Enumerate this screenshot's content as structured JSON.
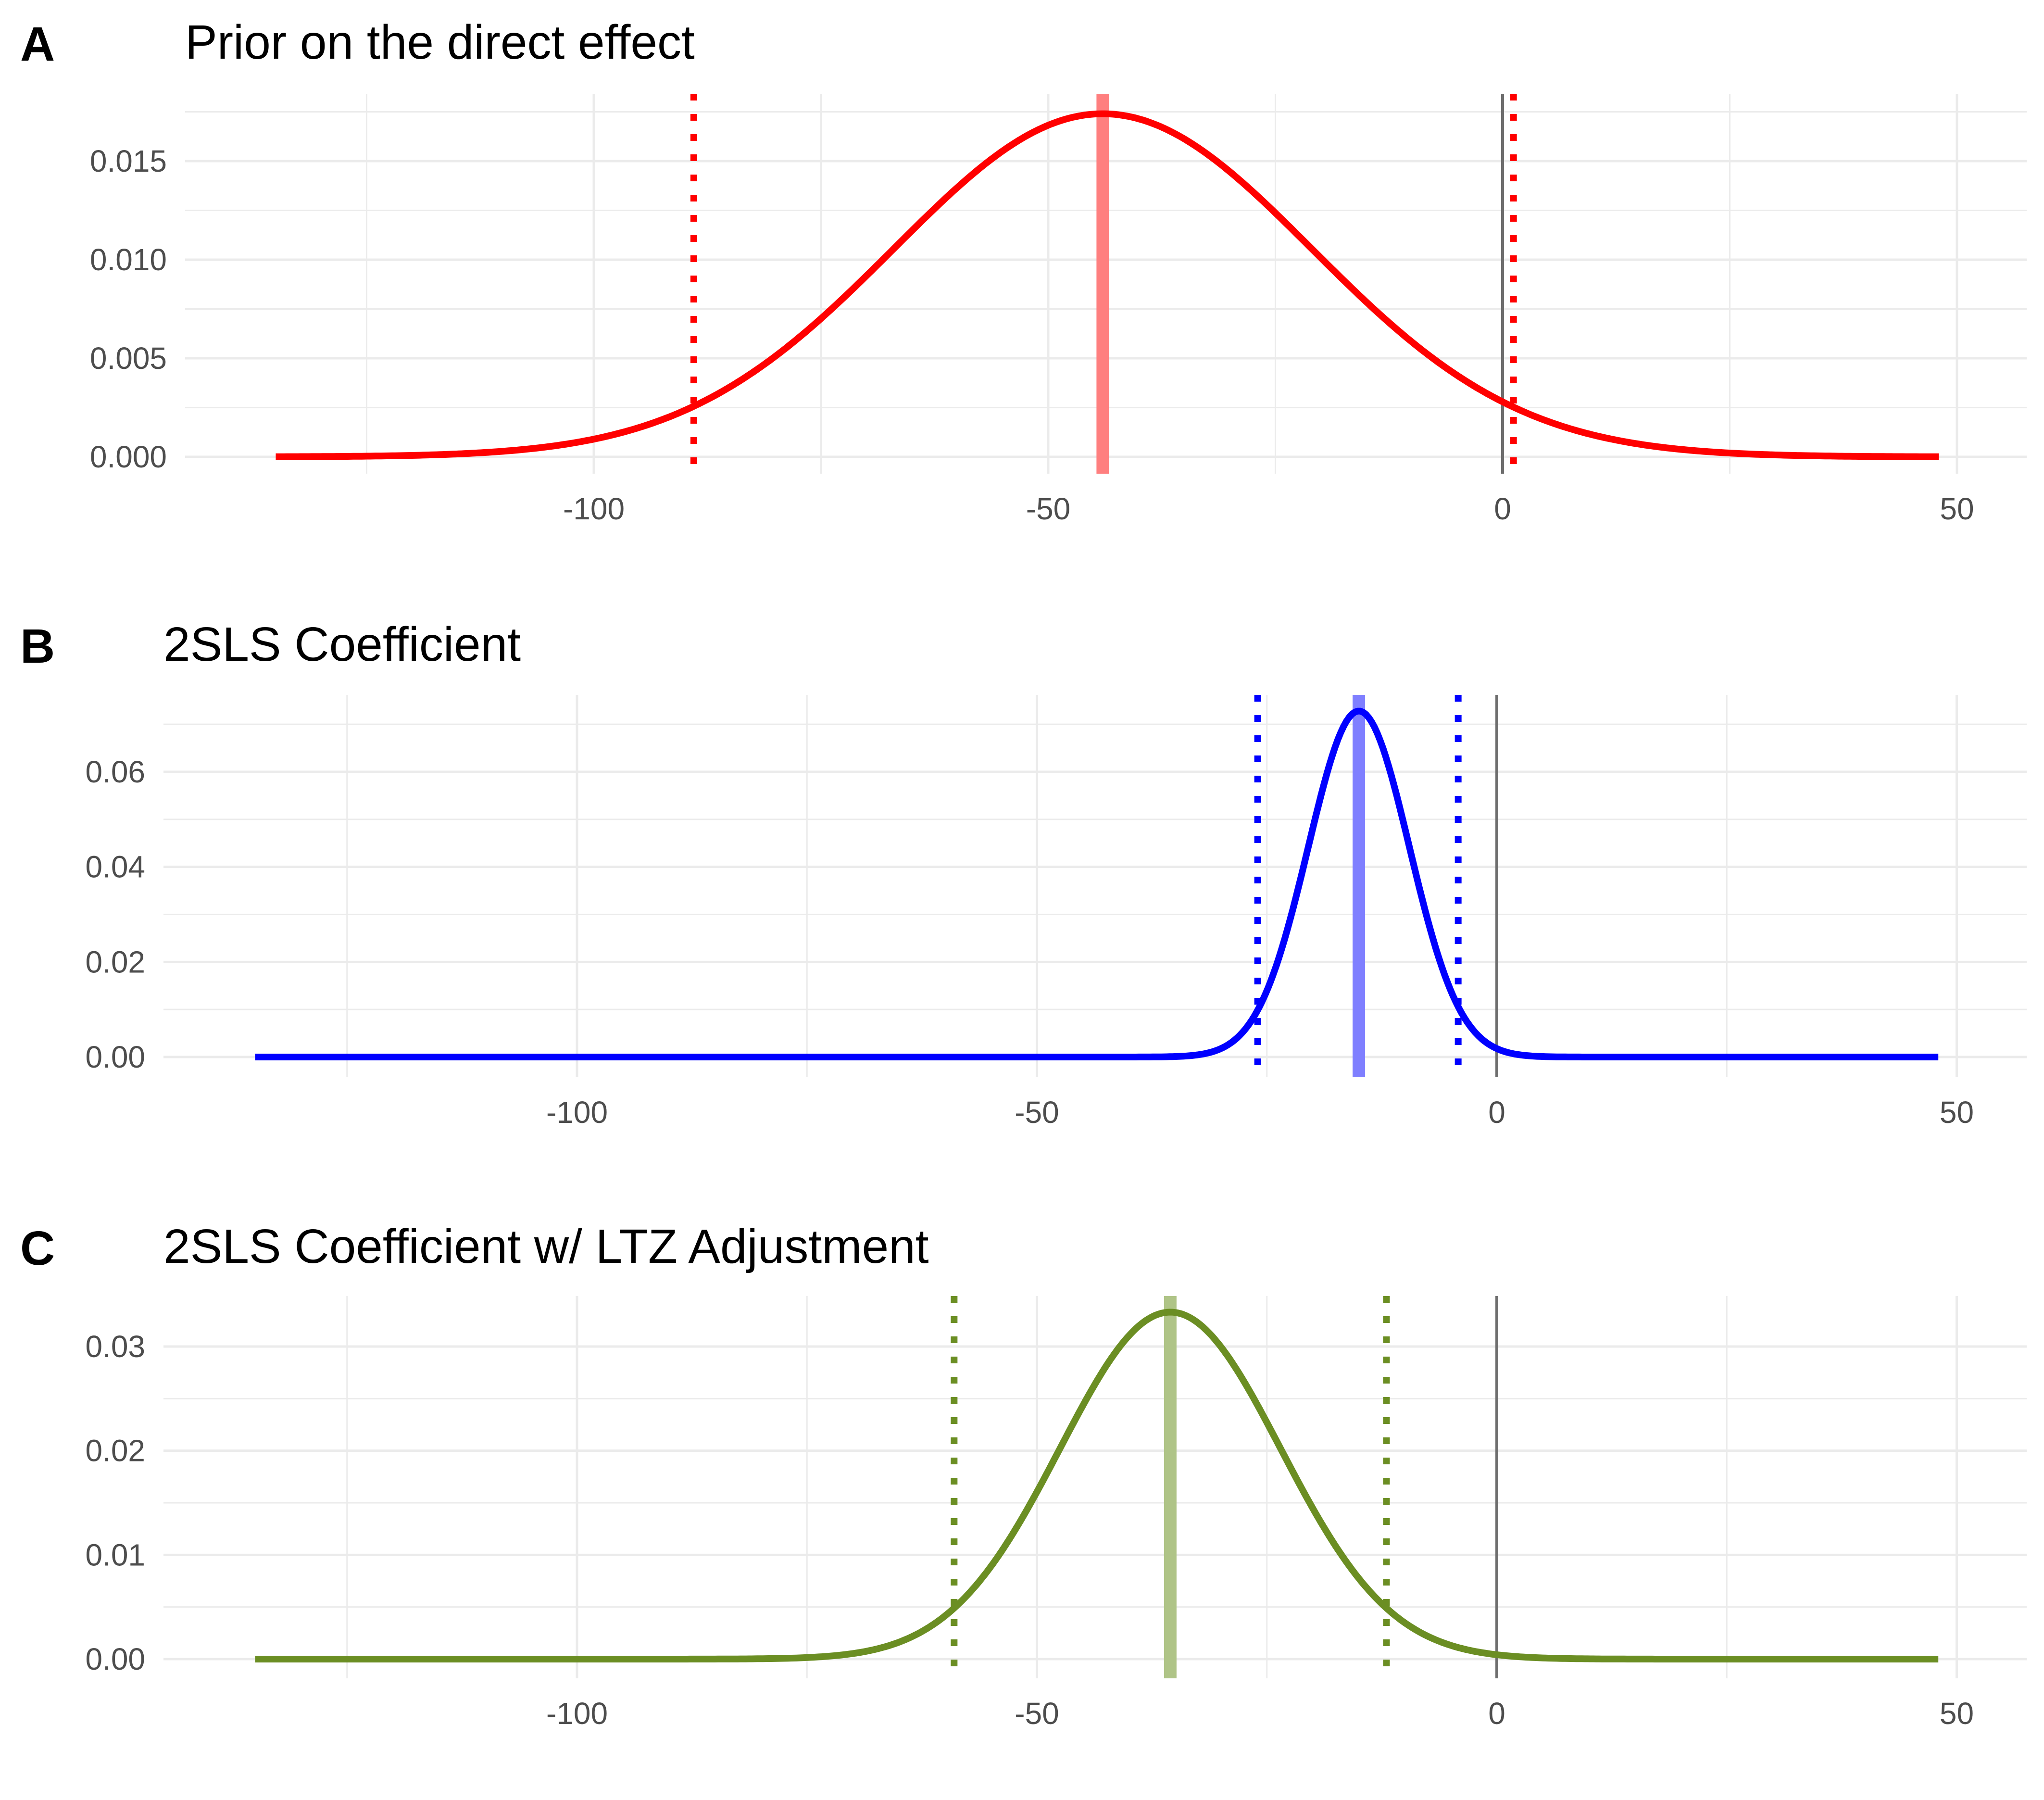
{
  "chart_data": [
    {
      "type": "line",
      "panel_label": "A",
      "title": "Prior on the direct effect",
      "xlabel": "",
      "ylabel": "",
      "xlim": [
        -140,
        50
      ],
      "ylim": [
        0,
        0.0175
      ],
      "x_ticks": [
        "-100",
        "-50",
        "0",
        "50"
      ],
      "y_ticks": [
        "0.000",
        "0.005",
        "0.010",
        "0.015"
      ],
      "grid": true,
      "series": [
        {
          "distribution": "normal",
          "mean": -44,
          "sd": 23,
          "peak": 0.0174,
          "x_range": [
            -135,
            48
          ],
          "color": "#FF0000"
        }
      ],
      "vlines": [
        {
          "x": -44,
          "style": "solid",
          "color": "#FF7F7F",
          "kind": "mean"
        },
        {
          "x": -89,
          "style": "dotted",
          "color": "#FF0000",
          "kind": "interval"
        },
        {
          "x": 1.2,
          "style": "dotted",
          "color": "#FF0000",
          "kind": "interval"
        },
        {
          "x": 0,
          "style": "solid",
          "color": "#6E6E6E",
          "kind": "zero"
        }
      ]
    },
    {
      "type": "line",
      "panel_label": "B",
      "title": "2SLS Coefficient",
      "xlabel": "",
      "ylabel": "",
      "xlim": [
        -140,
        50
      ],
      "ylim": [
        0,
        0.075
      ],
      "x_ticks": [
        "-100",
        "-50",
        "0",
        "50"
      ],
      "y_ticks": [
        "0.00",
        "0.02",
        "0.04",
        "0.06"
      ],
      "grid": true,
      "series": [
        {
          "distribution": "normal",
          "mean": -15,
          "sd": 5.5,
          "peak": 0.0728,
          "x_range": [
            -135,
            48
          ],
          "color": "#0000FF"
        }
      ],
      "vlines": [
        {
          "x": -15,
          "style": "solid",
          "color": "#7F7FFF",
          "kind": "mean"
        },
        {
          "x": -26,
          "style": "dotted",
          "color": "#0000FF",
          "kind": "interval"
        },
        {
          "x": -4.2,
          "style": "dotted",
          "color": "#0000FF",
          "kind": "interval"
        },
        {
          "x": 0,
          "style": "solid",
          "color": "#6E6E6E",
          "kind": "zero"
        }
      ]
    },
    {
      "type": "line",
      "panel_label": "C",
      "title": "2SLS Coefficient w/ LTZ Adjustment",
      "xlabel": "",
      "ylabel": "",
      "xlim": [
        -140,
        50
      ],
      "ylim": [
        0,
        0.0335
      ],
      "x_ticks": [
        "-100",
        "-50",
        "0",
        "50"
      ],
      "y_ticks": [
        "0.00",
        "0.01",
        "0.02",
        "0.03"
      ],
      "grid": true,
      "series": [
        {
          "distribution": "normal",
          "mean": -35.5,
          "sd": 12,
          "peak": 0.0333,
          "x_range": [
            -135,
            48
          ],
          "color": "#6B8E23"
        }
      ],
      "vlines": [
        {
          "x": -35.5,
          "style": "solid",
          "color": "#AFC487",
          "kind": "mean"
        },
        {
          "x": -59,
          "style": "dotted",
          "color": "#6B8E23",
          "kind": "interval"
        },
        {
          "x": -12,
          "style": "dotted",
          "color": "#6B8E23",
          "kind": "interval"
        },
        {
          "x": 0,
          "style": "solid",
          "color": "#6E6E6E",
          "kind": "zero"
        }
      ]
    }
  ]
}
